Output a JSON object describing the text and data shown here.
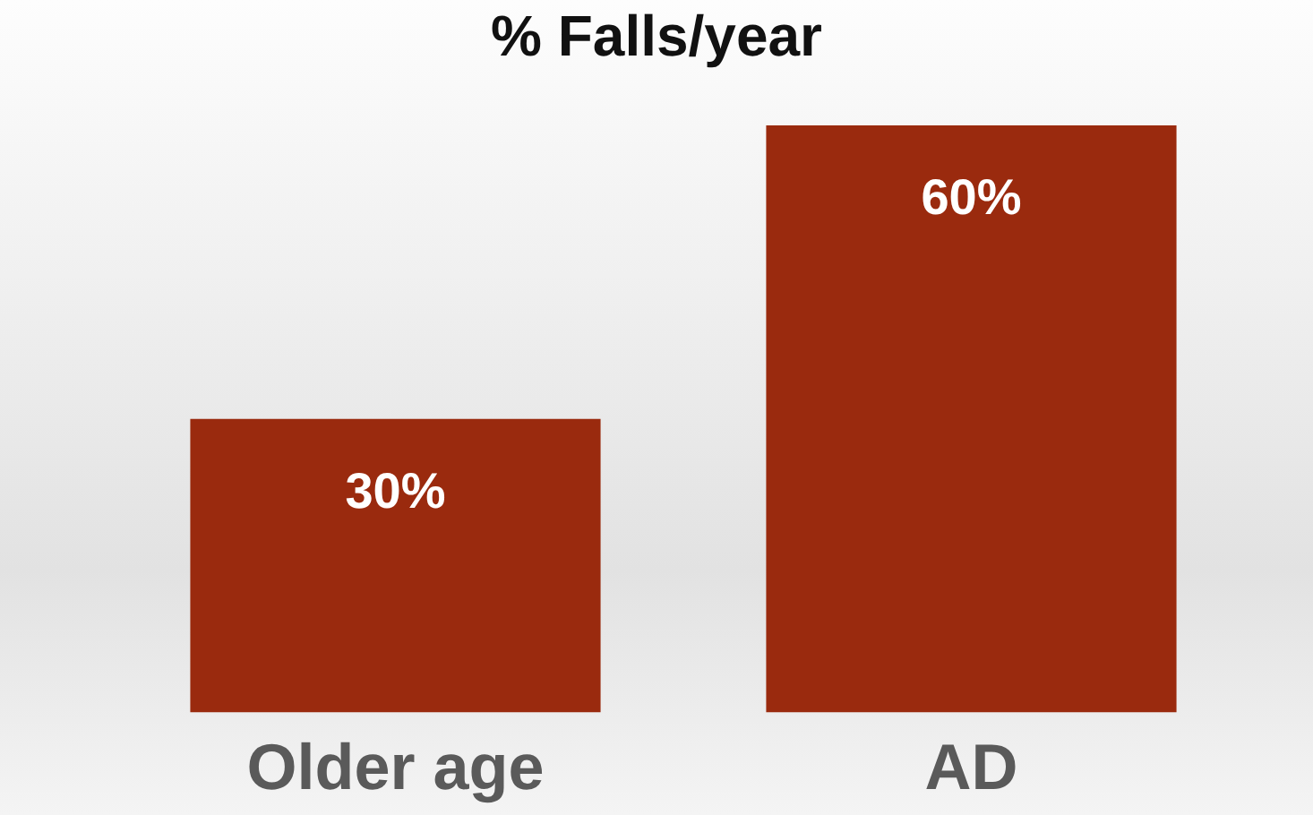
{
  "chart_data": {
    "type": "bar",
    "title": "% Falls/year",
    "categories": [
      "Older age",
      "AD"
    ],
    "values": [
      30,
      60
    ],
    "color": "#9a2a0e",
    "value_labels": [
      "30%",
      "60%"
    ]
  }
}
